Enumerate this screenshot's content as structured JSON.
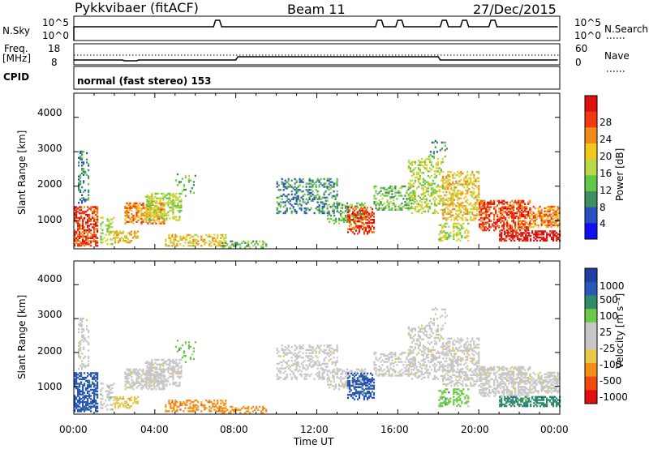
{
  "header": {
    "station": "Pykkvibaer (fitACF)",
    "beam": "Beam 11",
    "date": "27/Dec/2015"
  },
  "top_strip": {
    "left_label": "N.Sky",
    "left_ticks": [
      "10^5",
      "10^0"
    ],
    "right_ticks": [
      "10^5",
      "10^0"
    ],
    "right_label": "N.Search",
    "right_label_marker": "dotted"
  },
  "freq_strip": {
    "left_label_line1": "Freq.",
    "left_label_line2": "[MHz]",
    "left_ticks": [
      "18",
      "8"
    ],
    "right_ticks": [
      "60",
      "0"
    ],
    "right_label": "Nave",
    "right_label_marker": "dotted"
  },
  "cpid": {
    "label": "CPID",
    "mode_text": "normal (fast stereo) 153"
  },
  "x_axis": {
    "title": "Time UT",
    "ticks": [
      "00:00",
      "04:00",
      "08:00",
      "12:00",
      "16:00",
      "20:00",
      "00:00"
    ]
  },
  "colors": {
    "power": [
      "#1010ee",
      "#2a4fc0",
      "#3f8f5f",
      "#62c84a",
      "#b9d94a",
      "#f2c81c",
      "#f08c1c",
      "#ee3c10",
      "#dd1010"
    ],
    "velocity": [
      "#dd1010",
      "#f04a10",
      "#f48e1a",
      "#e8c84a",
      "#c7c7c7",
      "#c7c7c7",
      "#6dca48",
      "#2e8c6a",
      "#2a58b8",
      "#1e40a0"
    ]
  },
  "chart_data": [
    {
      "type": "heatmap",
      "title": "",
      "xlabel": "",
      "ylabel": "Slant Range [km]",
      "xlim": [
        0,
        24
      ],
      "ylim": [
        180,
        4700
      ],
      "y_ticks": [
        "1000",
        "2000",
        "3000",
        "4000"
      ],
      "colorbar": {
        "label": "Power [dB]",
        "ticks": [
          "4",
          "8",
          "12",
          "16",
          "20",
          "24",
          "28"
        ],
        "range": [
          0,
          30
        ]
      }
    },
    {
      "type": "heatmap",
      "title": "",
      "xlabel": "Time UT",
      "ylabel": "Slant Range [km]",
      "xlim": [
        0,
        24
      ],
      "ylim": [
        180,
        4700
      ],
      "y_ticks": [
        "1000",
        "2000",
        "3000",
        "4000"
      ],
      "colorbar": {
        "label": "Velocity [m s⁻¹]",
        "ticks": [
          "1000",
          "500",
          "100",
          "25",
          "-25",
          "-100",
          "-500",
          "-1000"
        ]
      }
    }
  ]
}
